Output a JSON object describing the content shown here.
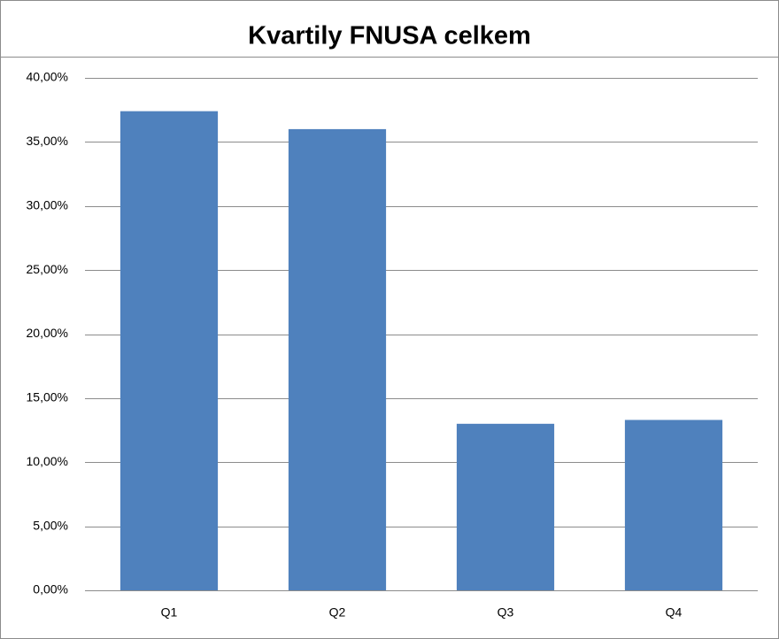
{
  "chart_data": {
    "type": "bar",
    "title": "Kvartily FNUSA celkem",
    "categories": [
      "Q1",
      "Q2",
      "Q3",
      "Q4"
    ],
    "values": [
      37.4,
      36.0,
      13.0,
      13.3
    ],
    "color": "#4f81bd",
    "ylim": [
      0,
      40
    ],
    "yticks": [
      {
        "value": 0,
        "label": "0,00%"
      },
      {
        "value": 5,
        "label": "5,00%"
      },
      {
        "value": 10,
        "label": "10,00%"
      },
      {
        "value": 15,
        "label": "15,00%"
      },
      {
        "value": 20,
        "label": "20,00%"
      },
      {
        "value": 25,
        "label": "25,00%"
      },
      {
        "value": 30,
        "label": "30,00%"
      },
      {
        "value": 35,
        "label": "35,00%"
      },
      {
        "value": 40,
        "label": "40,00%"
      }
    ],
    "grid": true
  }
}
